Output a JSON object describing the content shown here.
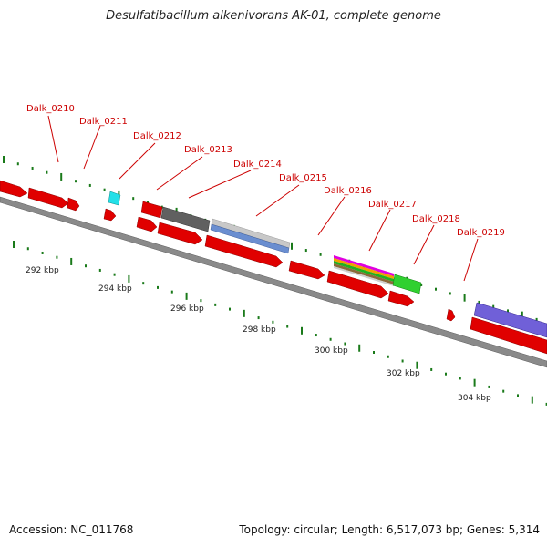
{
  "title": "Desulfatibacillum alkenivorans AK-01, complete genome",
  "footer": {
    "accession": "Accession: NC_011768",
    "summary": "Topology: circular; Length: 6,517,073 bp; Genes: 5,314"
  },
  "colors": {
    "gene": "#e00000",
    "backbone": "#808080",
    "tick": "#1a7a1a",
    "label": "#cc0000"
  },
  "scale_labels": [
    "292 kbp",
    "294 kbp",
    "296 kbp",
    "298 kbp",
    "300 kbp",
    "302 kbp",
    "304 kbp"
  ],
  "gene_labels": [
    "Dalk_0210",
    "Dalk_0211",
    "Dalk_0212",
    "Dalk_0213",
    "Dalk_0214",
    "Dalk_0215",
    "Dalk_0216",
    "Dalk_0217",
    "Dalk_0218",
    "Dalk_0219"
  ]
}
